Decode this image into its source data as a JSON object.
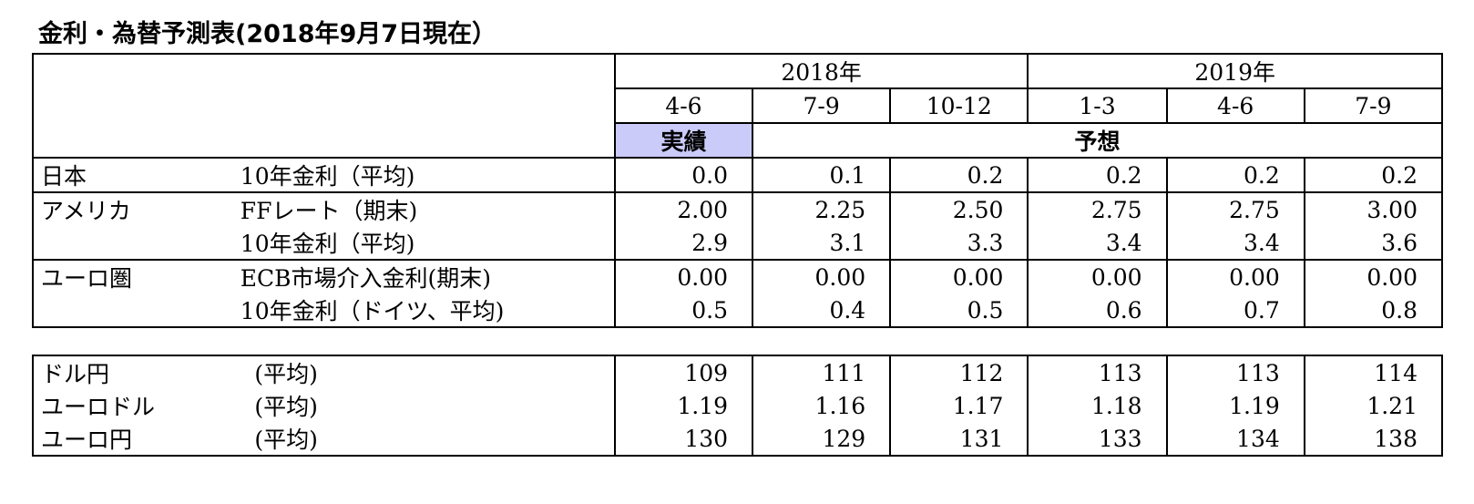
{
  "title": "金利・為替予測表(2018年9月7日現在）",
  "years": [
    "2018年",
    "2019年"
  ],
  "quarters": [
    "4-6",
    "7-9",
    "10-12",
    "1-3",
    "4-6",
    "7-9"
  ],
  "actual_label": "実績",
  "forecast_label": "予想",
  "colors": {
    "actual_bg": "#cbcbfa"
  },
  "rates": [
    {
      "region": "日本",
      "item": "10年金利（平均)",
      "values": [
        "0.0",
        "0.1",
        "0.2",
        "0.2",
        "0.2",
        "0.2"
      ]
    },
    {
      "region": "アメリカ",
      "item": "FFレート（期末)",
      "values": [
        "2.00",
        "2.25",
        "2.50",
        "2.75",
        "2.75",
        "3.00"
      ]
    },
    {
      "region": "",
      "item": "10年金利（平均)",
      "values": [
        "2.9",
        "3.1",
        "3.3",
        "3.4",
        "3.4",
        "3.6"
      ]
    },
    {
      "region": "ユーロ圏",
      "item": "ECB市場介入金利(期末)",
      "values": [
        "0.00",
        "0.00",
        "0.00",
        "0.00",
        "0.00",
        "0.00"
      ]
    },
    {
      "region": "",
      "item": "10年金利（ドイツ、平均)",
      "values": [
        "0.5",
        "0.4",
        "0.5",
        "0.6",
        "0.7",
        "0.8"
      ]
    }
  ],
  "fx": [
    {
      "pair": "ドル円",
      "item": "(平均)",
      "values": [
        "109",
        "111",
        "112",
        "113",
        "113",
        "114"
      ]
    },
    {
      "pair": "ユーロドル",
      "item": "(平均)",
      "values": [
        "1.19",
        "1.16",
        "1.17",
        "1.18",
        "1.19",
        "1.21"
      ]
    },
    {
      "pair": "ユーロ円",
      "item": "(平均)",
      "values": [
        "130",
        "129",
        "131",
        "133",
        "134",
        "138"
      ]
    }
  ]
}
